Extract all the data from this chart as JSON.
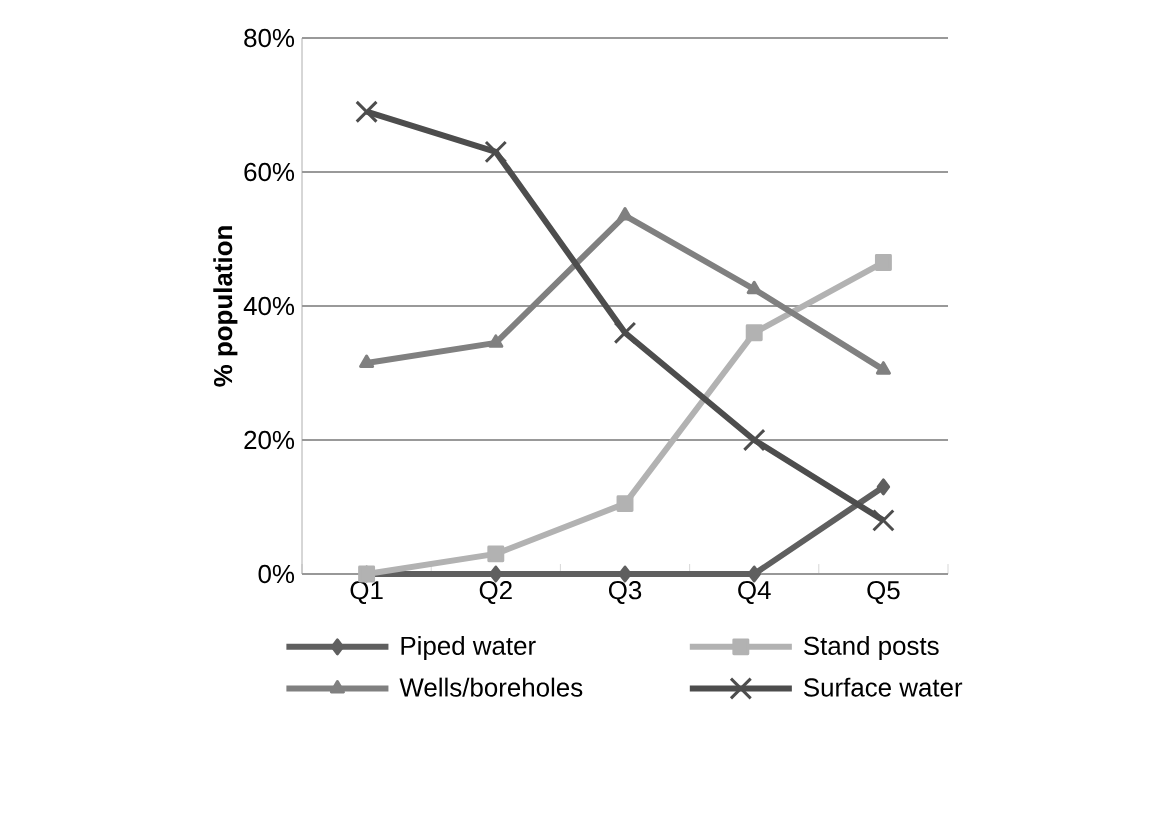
{
  "chart_data": {
    "type": "line",
    "ylabel": "% population",
    "categories": [
      "Q1",
      "Q2",
      "Q3",
      "Q4",
      "Q5"
    ],
    "series": [
      {
        "name": "Piped water",
        "color": "#5f5f5f",
        "marker": "diamond",
        "values": [
          0,
          0,
          0,
          0,
          13
        ]
      },
      {
        "name": "Stand posts",
        "color": "#b2b2b2",
        "marker": "square",
        "values": [
          0,
          3,
          10.5,
          36,
          46.5
        ]
      },
      {
        "name": "Wells/boreholes",
        "color": "#808080",
        "marker": "triangle",
        "values": [
          31.5,
          34.5,
          53.5,
          42.5,
          30.5
        ]
      },
      {
        "name": "Surface water",
        "color": "#4d4d4d",
        "marker": "cross",
        "values": [
          69,
          63,
          36,
          20,
          8
        ]
      }
    ],
    "ylim": [
      0,
      80
    ],
    "yticks": [
      {
        "value": 0,
        "label": "0%"
      },
      {
        "value": 20,
        "label": "20%"
      },
      {
        "value": 40,
        "label": "40%"
      },
      {
        "value": 60,
        "label": "60%"
      },
      {
        "value": 80,
        "label": "80%"
      }
    ],
    "grid": "y",
    "legend": "bottom"
  }
}
